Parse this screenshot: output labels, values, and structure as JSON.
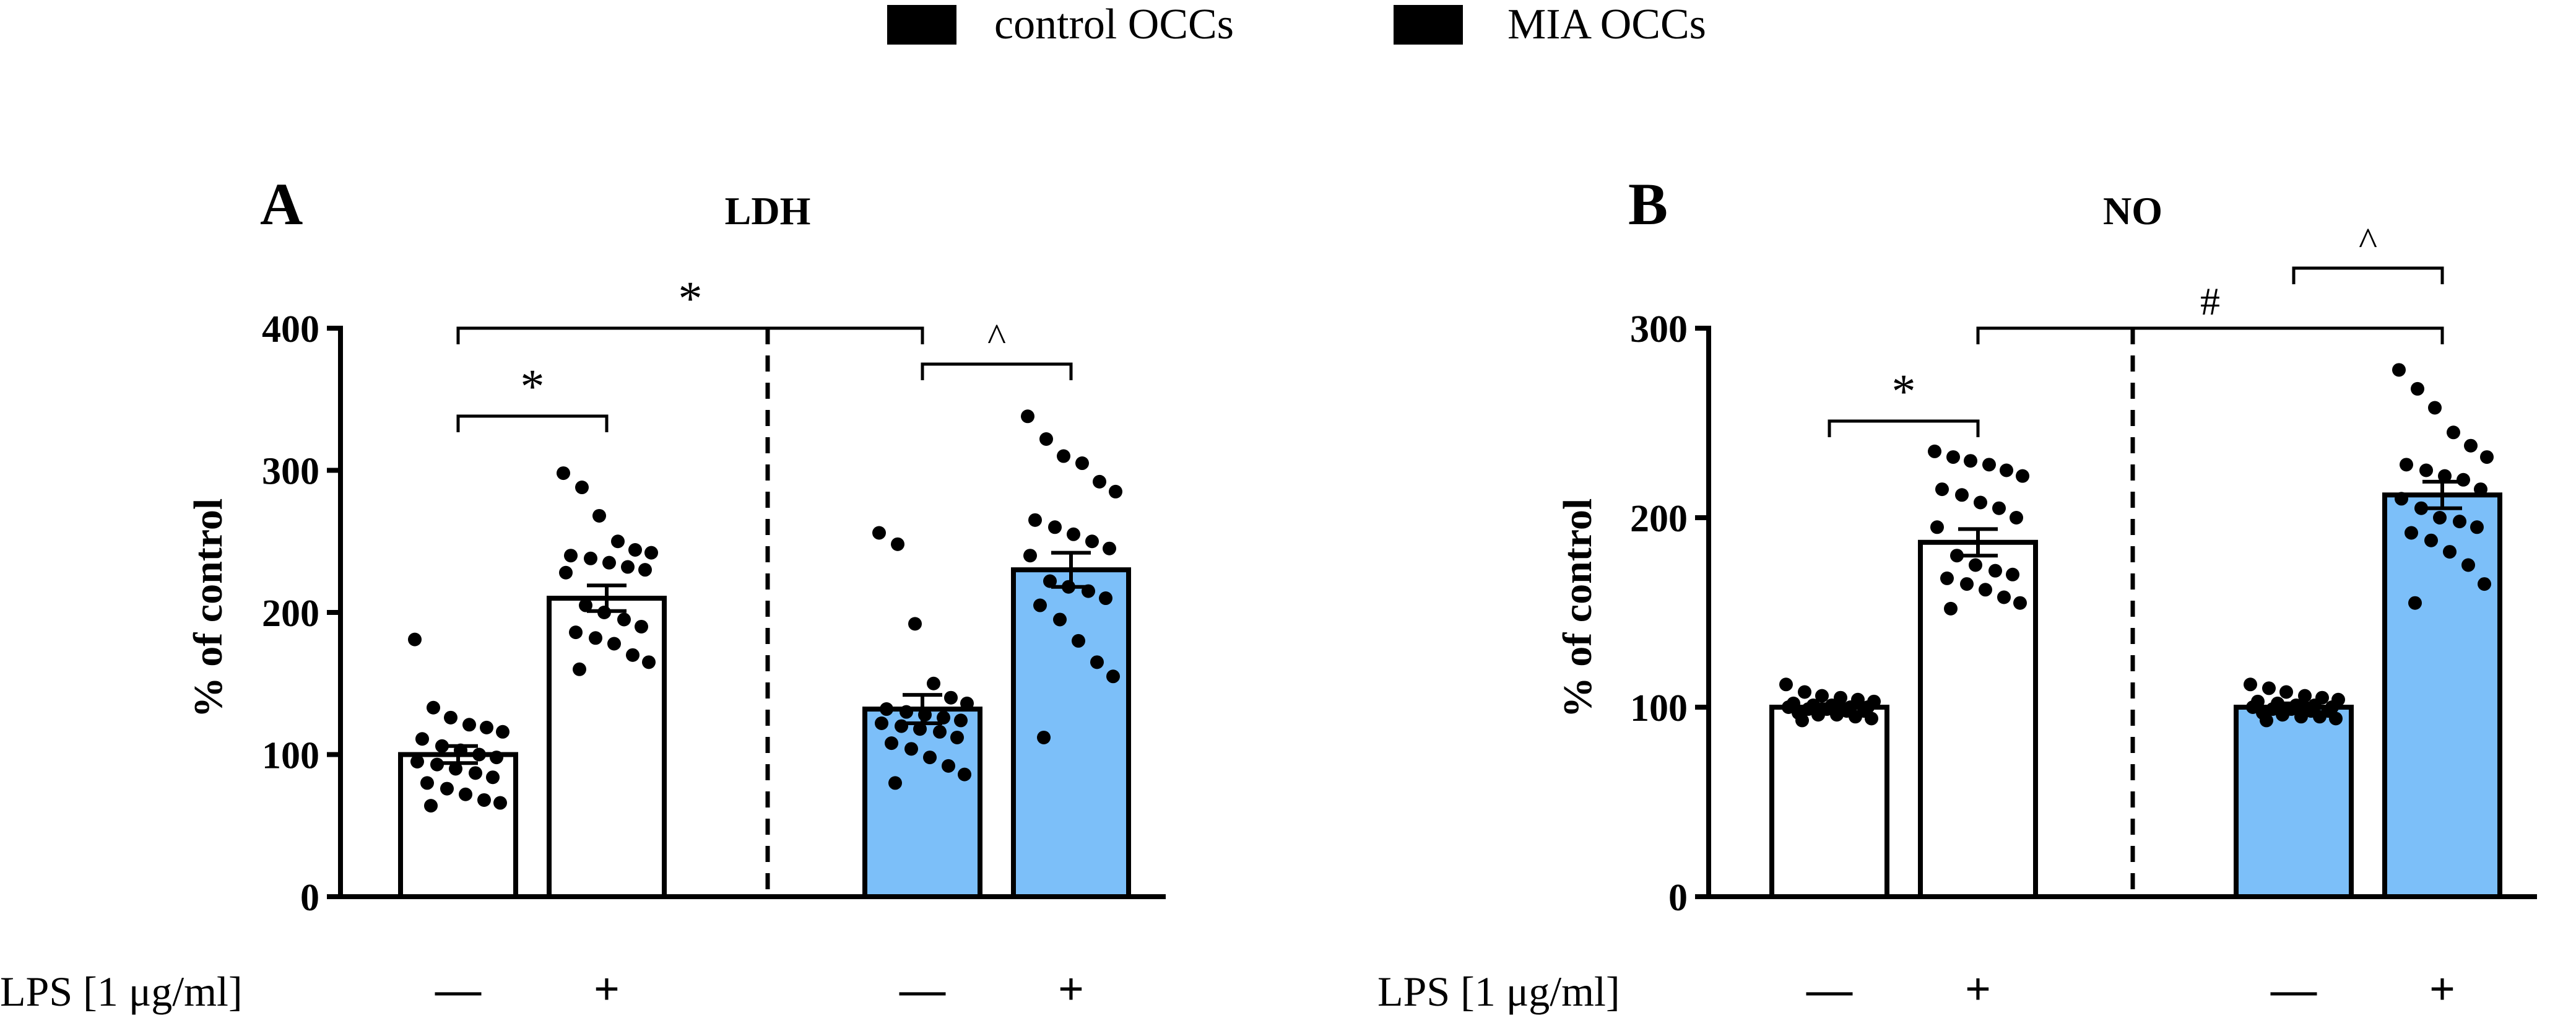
{
  "legend": {
    "items": [
      {
        "label": "control OCCs",
        "color": "#ffffff"
      },
      {
        "label": "MIA OCCs",
        "color": "#7cbff9"
      }
    ]
  },
  "x_row": {
    "label": "LPS [1 μg/ml]",
    "values": [
      "—",
      "+",
      "—",
      "+"
    ]
  },
  "chart_data": [
    {
      "type": "bar",
      "panel": "A",
      "title": "LDH",
      "ylabel": "% of control",
      "ylim": [
        0,
        400
      ],
      "yticks": [
        0,
        100,
        200,
        300,
        400
      ],
      "categories": [
        "control OCCs LPS −",
        "control OCCs LPS +",
        "MIA OCCs LPS −",
        "MIA OCCs LPS +"
      ],
      "values": [
        100,
        210,
        132,
        230
      ],
      "errors": [
        6,
        9,
        10,
        12
      ],
      "colors": [
        "#ffffff",
        "#ffffff",
        "#7cbff9",
        "#7cbff9"
      ],
      "points": [
        [
          181,
          133,
          126,
          121,
          119,
          116,
          111,
          106,
          103,
          100,
          98,
          95,
          93,
          90,
          87,
          84,
          80,
          76,
          72,
          68,
          66,
          64
        ],
        [
          298,
          288,
          268,
          250,
          244,
          242,
          240,
          238,
          235,
          232,
          230,
          228,
          205,
          200,
          195,
          190,
          186,
          182,
          178,
          170,
          165,
          160
        ],
        [
          256,
          248,
          192,
          150,
          140,
          136,
          132,
          130,
          128,
          126,
          124,
          122,
          120,
          118,
          116,
          112,
          108,
          104,
          98,
          92,
          86,
          80
        ],
        [
          338,
          322,
          310,
          305,
          292,
          285,
          265,
          260,
          255,
          250,
          245,
          240,
          222,
          218,
          215,
          210,
          205,
          195,
          180,
          165,
          155,
          112
        ]
      ],
      "significance": [
        {
          "symbol": "*",
          "from": 0,
          "to": 1
        },
        {
          "symbol": "*",
          "from": 0,
          "to": 2
        },
        {
          "symbol": "^",
          "from": 2,
          "to": 3
        }
      ]
    },
    {
      "type": "bar",
      "panel": "B",
      "title": "NO",
      "ylabel": "% of control",
      "ylim": [
        0,
        300
      ],
      "yticks": [
        0,
        100,
        200,
        300
      ],
      "categories": [
        "control OCCs LPS −",
        "control OCCs LPS +",
        "MIA OCCs LPS −",
        "MIA OCCs LPS +"
      ],
      "values": [
        100,
        187,
        100,
        212
      ],
      "errors": [
        1.5,
        7,
        2,
        7
      ],
      "colors": [
        "#ffffff",
        "#ffffff",
        "#7cbff9",
        "#7cbff9"
      ],
      "points": [
        [
          112,
          108,
          106,
          105,
          104,
          103,
          102,
          101,
          101,
          100,
          100,
          100,
          99,
          99,
          98,
          98,
          97,
          96,
          96,
          95,
          94,
          93
        ],
        [
          235,
          232,
          230,
          228,
          225,
          222,
          215,
          212,
          208,
          205,
          200,
          195,
          180,
          175,
          172,
          170,
          168,
          165,
          162,
          158,
          155,
          152
        ],
        [
          112,
          110,
          108,
          106,
          105,
          104,
          103,
          102,
          101,
          101,
          100,
          100,
          99,
          99,
          98,
          98,
          97,
          96,
          95,
          95,
          94,
          93
        ],
        [
          278,
          268,
          258,
          245,
          238,
          232,
          228,
          225,
          222,
          220,
          215,
          210,
          205,
          200,
          198,
          195,
          192,
          188,
          182,
          175,
          165,
          155
        ]
      ],
      "significance": [
        {
          "symbol": "*",
          "from": 0,
          "to": 1
        },
        {
          "symbol": "#",
          "from": 1,
          "to": 3
        },
        {
          "symbol": "^",
          "from": 2,
          "to": 3
        }
      ]
    }
  ]
}
